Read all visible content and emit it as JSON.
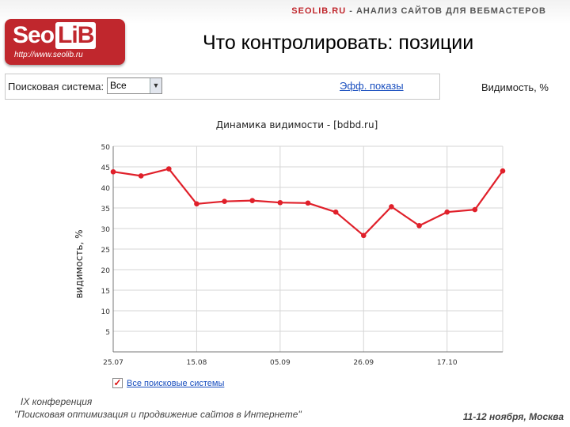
{
  "header": {
    "brand": "SEOLIB.RU",
    "tagline_rest": " - АНАЛИЗ САЙТОВ ДЛЯ ВЕБМАСТЕРОВ",
    "logo_seo": "Seo",
    "logo_lib": "LiB",
    "logo_url": "http://www.seolib.ru"
  },
  "slide_title": "Что контролировать: позиции",
  "controls": {
    "search_system_label": "Поисковая система:",
    "search_system_value": "Все",
    "dropdown_arrow": "▼",
    "views_link": "Эфф. показы",
    "visibility_label": "Видимость, %",
    "checkbox_mark": "✓",
    "checkbox_label": "Все поисковые системы"
  },
  "chart_data": {
    "type": "line",
    "title": "Динамика видимости - [bdbd.ru]",
    "ylabel": "видимость, %",
    "xlabel": "",
    "ylim": [
      0,
      50
    ],
    "yticks": [
      5,
      10,
      15,
      20,
      25,
      30,
      35,
      40,
      45,
      50
    ],
    "x_tick_labels": [
      "25.07",
      "15.08",
      "05.09",
      "26.09",
      "17.10"
    ],
    "x_tick_positions": [
      0,
      3,
      6,
      9,
      12
    ],
    "x_count": 15,
    "grid": true,
    "color": "#e0202a",
    "values": [
      43.8,
      42.8,
      44.5,
      36.0,
      36.6,
      36.8,
      36.3,
      36.2,
      34.0,
      28.3,
      35.3,
      30.7,
      34.0,
      34.6,
      44.0
    ]
  },
  "footer": {
    "conference": "IX конференция",
    "theme": "\"Поисковая оптимизация и продвижение сайтов в Интернете\"",
    "date": "11-12 ноября, Москва"
  }
}
